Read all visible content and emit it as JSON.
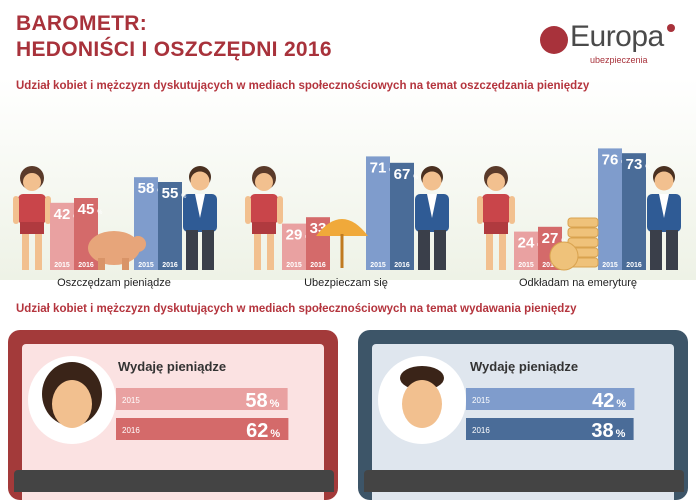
{
  "header": {
    "title_line1": "BAROMETR:",
    "title_line2": "HEDONIŚCI I OSZCZĘDNI 2016",
    "brand": "Europa",
    "brand_sub": "ubezpieczenia"
  },
  "colors": {
    "women": "#d46a6a",
    "women_light": "#e9a1a1",
    "men": "#4a6c98",
    "men_light": "#7f9ccc",
    "accent": "#a8323b"
  },
  "section1": {
    "heading": "Udział kobiet i mężczyzn dyskutujących w mediach społecznościowych na temat oszczędzania pieniędzy"
  },
  "section2": {
    "heading": "Udział kobiet i mężczyzn dyskutujących w mediach społecznościowych na temat wydawania pieniędzy"
  },
  "chart_data": [
    {
      "type": "bar",
      "unit": "%",
      "groups": [
        {
          "label": "Oszczędzam pieniądze",
          "icon": "piggy-bank-icon",
          "women": [
            {
              "year": "2015",
              "value": 42
            },
            {
              "year": "2016",
              "value": 45
            }
          ],
          "men": [
            {
              "year": "2015",
              "value": 58
            },
            {
              "year": "2016",
              "value": 55
            }
          ]
        },
        {
          "label": "Ubezpieczam się",
          "icon": "umbrella-icon",
          "women": [
            {
              "year": "2015",
              "value": 29
            },
            {
              "year": "2016",
              "value": 33
            }
          ],
          "men": [
            {
              "year": "2015",
              "value": 71
            },
            {
              "year": "2016",
              "value": 67
            }
          ]
        },
        {
          "label": "Odkładam na emeryturę",
          "icon": "coins-icon",
          "women": [
            {
              "year": "2015",
              "value": 24
            },
            {
              "year": "2016",
              "value": 27
            }
          ],
          "men": [
            {
              "year": "2015",
              "value": 76
            },
            {
              "year": "2016",
              "value": 73
            }
          ]
        }
      ]
    },
    {
      "type": "bar",
      "unit": "%",
      "panels": [
        {
          "gender": "women",
          "title": "Wydaję pieniądze",
          "rows": [
            {
              "year": "2015",
              "value": 58
            },
            {
              "year": "2016",
              "value": 62
            }
          ]
        },
        {
          "gender": "men",
          "title": "Wydaję pieniądze",
          "rows": [
            {
              "year": "2015",
              "value": 42
            },
            {
              "year": "2016",
              "value": 38
            }
          ]
        }
      ]
    }
  ]
}
